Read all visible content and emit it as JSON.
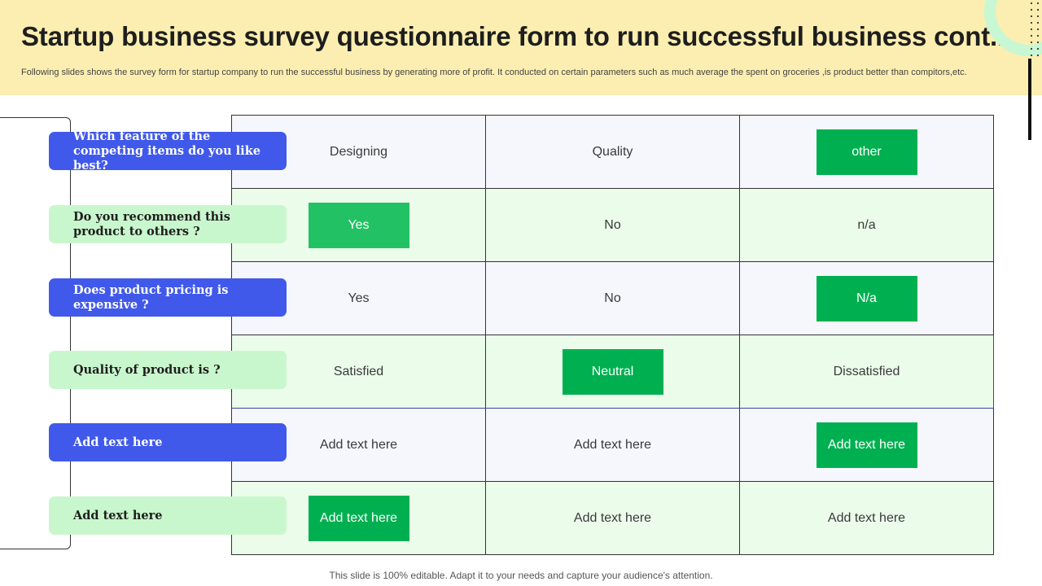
{
  "header": {
    "title": "Startup business survey questionnaire form to run successful business cont..",
    "subtitle": "Following slides shows the survey form for startup company to run the successful  business  by generating more of profit.  It  conducted on certain parameters such as much average the spent on groceries ,is product better than compitors,etc."
  },
  "questions": [
    "Which feature of the competing items do you like best?",
    "Do you recommend this product to others ?",
    "Does product pricing is expensive ?",
    "Quality of product is ?",
    "Add text here",
    "Add text here"
  ],
  "rows": [
    [
      "Designing",
      "Quality",
      "other"
    ],
    [
      "Yes",
      "No",
      "n/a"
    ],
    [
      "Yes",
      "No",
      "N/a"
    ],
    [
      "Satisfied",
      "Neutral",
      "Dissatisfied"
    ],
    [
      "Add text here",
      "Add text here",
      "Add text here"
    ],
    [
      "Add text here",
      "Add text here",
      "Add text here"
    ]
  ],
  "highlighted": [
    "row 1: column 3",
    "row 2: column 1",
    "row 3: column 3",
    "row 4: column 2",
    "row 5: column 3",
    "row 6: column 1"
  ],
  "colors": {
    "header_bg": "#fbeeb0",
    "question_blue": "#4059ea",
    "question_mint": "#c9f7cd",
    "highlight_green": "#00b050",
    "highlight_green_light": "#22c264",
    "row_light": "#f6f7fd",
    "row_green": "#ebfcea",
    "accent_ring": "#c8f7d3"
  },
  "footer": {
    "note": "This slide is 100% editable. Adapt it to your needs and capture your audience's attention."
  }
}
